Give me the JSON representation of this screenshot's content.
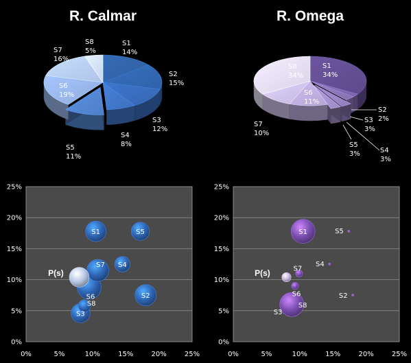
{
  "chart_data": [
    {
      "type": "pie",
      "title": "R. Calmar",
      "slices": [
        {
          "name": "S1",
          "value": 14,
          "label": "14%"
        },
        {
          "name": "S2",
          "value": 15,
          "label": "15%"
        },
        {
          "name": "S3",
          "value": 12,
          "label": "12%"
        },
        {
          "name": "S4",
          "value": 8,
          "label": "8%"
        },
        {
          "name": "S5",
          "value": 11,
          "label": "11%"
        },
        {
          "name": "S6",
          "value": 19,
          "label": "19%"
        },
        {
          "name": "S7",
          "value": 16,
          "label": "16%"
        },
        {
          "name": "S8",
          "value": 5,
          "label": "5%"
        }
      ],
      "exploded": [
        "S5"
      ],
      "colors": [
        "#2e5e9e",
        "#2f62a8",
        "#3567b3",
        "#3d70bd",
        "#4e7fc7",
        "#90acdc",
        "#aec2e5",
        "#c7d4ec"
      ]
    },
    {
      "type": "pie",
      "title": "R. Omega",
      "slices": [
        {
          "name": "S1",
          "value": 34,
          "label": "34%"
        },
        {
          "name": "S2",
          "value": 2,
          "label": "2%"
        },
        {
          "name": "S3",
          "value": 3,
          "label": "3%"
        },
        {
          "name": "S4",
          "value": 3,
          "label": "3%"
        },
        {
          "name": "S5",
          "value": 3,
          "label": "3%"
        },
        {
          "name": "S6",
          "value": 11,
          "label": "11%"
        },
        {
          "name": "S7",
          "value": 10,
          "label": "10%"
        },
        {
          "name": "S8",
          "value": 34,
          "label": "34%"
        }
      ],
      "exploded": [
        "S4",
        "S5"
      ],
      "colors": [
        "#5e4a8a",
        "#7a64a6",
        "#8671b0",
        "#927ebb",
        "#9d8bc4",
        "#b3a5d3",
        "#c3b8dc",
        "#d8d1e8"
      ]
    },
    {
      "type": "scatter",
      "subtype": "bubble",
      "xlim": [
        0,
        25
      ],
      "ylim": [
        0,
        25
      ],
      "xticks": [
        "0%",
        "5%",
        "10%",
        "15%",
        "20%",
        "25%"
      ],
      "yticks": [
        "0%",
        "5%",
        "10%",
        "15%",
        "20%",
        "25%"
      ],
      "grid": true,
      "color": "#2f65b5",
      "highlight_color": "#b9c9e6",
      "points": [
        {
          "name": "S1",
          "x": 10.5,
          "y": 17.8,
          "size": 14
        },
        {
          "name": "S2",
          "x": 18,
          "y": 7.5,
          "size": 15
        },
        {
          "name": "S3",
          "x": 8.2,
          "y": 4.6,
          "size": 12
        },
        {
          "name": "S4",
          "x": 14.5,
          "y": 12.5,
          "size": 8
        },
        {
          "name": "S5",
          "x": 17.2,
          "y": 17.8,
          "size": 11
        },
        {
          "name": "S6",
          "x": 9.5,
          "y": 8.8,
          "size": 19
        },
        {
          "name": "S7",
          "x": 10.8,
          "y": 11.5,
          "size": 16
        },
        {
          "name": "S8",
          "x": 8.8,
          "y": 5.8,
          "size": 5
        },
        {
          "name": "P(s)",
          "x": 8.0,
          "y": 10.4,
          "size": 13,
          "highlight": true
        }
      ]
    },
    {
      "type": "scatter",
      "subtype": "bubble",
      "xlim": [
        0,
        25
      ],
      "ylim": [
        0,
        25
      ],
      "xticks": [
        "0%",
        "5%",
        "10%",
        "15%",
        "20%",
        "25%"
      ],
      "yticks": [
        "0%",
        "5%",
        "10%",
        "15%",
        "20%",
        "25%"
      ],
      "grid": true,
      "color": "#7a4fb0",
      "highlight_color": "#c9b8df",
      "points": [
        {
          "name": "S1",
          "x": 10.5,
          "y": 17.8,
          "size": 34
        },
        {
          "name": "S2",
          "x": 18,
          "y": 7.5,
          "size": 0.3
        },
        {
          "name": "S3",
          "x": 8.8,
          "y": 6,
          "size": 34
        },
        {
          "name": "S4",
          "x": 14.5,
          "y": 12.5,
          "size": 0.3
        },
        {
          "name": "S5",
          "x": 17.4,
          "y": 17.8,
          "size": 0.3
        },
        {
          "name": "S6",
          "x": 9.3,
          "y": 9.0,
          "size": 3
        },
        {
          "name": "S7",
          "x": 9.9,
          "y": 11.0,
          "size": 3
        },
        {
          "name": "S8",
          "x": 8.8,
          "y": 6,
          "size": 34
        },
        {
          "name": "P(s)",
          "x": 8.0,
          "y": 10.4,
          "size": 5,
          "highlight": true
        }
      ]
    }
  ]
}
